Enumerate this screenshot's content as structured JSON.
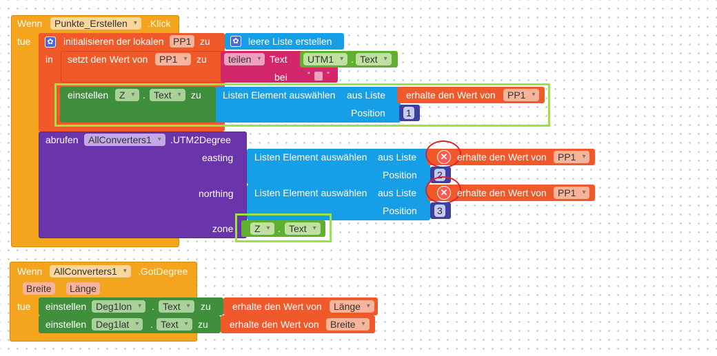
{
  "event1": {
    "when": "Wenn",
    "component": "Punkte_Erstellen",
    "event": ".Klick",
    "do": "tue",
    "init_label": "initialisieren der lokalen",
    "init_var": "PP1",
    "init_to": "zu",
    "empty_list": "leere Liste erstellen",
    "in_label": "in",
    "set_label": "setzt den Wert von",
    "set_var": "PP1",
    "set_to": "zu",
    "split_op": "teilen",
    "text_label": "Text",
    "utm_component": "UTM1",
    "dot": ".",
    "text_prop": "Text",
    "at_label": "bei",
    "string_quote_open": "“",
    "string_quote_close": "”",
    "assign_label": "einstellen",
    "z_component": "Z",
    "z_prop": "Text",
    "assign_to": "zu",
    "select_item": "Listen Element auswählen",
    "from_list": "aus Liste",
    "get_value": "erhalte den Wert von",
    "get_var": "PP1",
    "position_label": "Position",
    "position1": "1",
    "call_label": "abrufen",
    "call_component": "AllConverters1",
    "call_method": ".UTM2Degree",
    "easting": "easting",
    "northing": "northing",
    "zone": "zone",
    "position2": "2",
    "position3": "3",
    "zone_component": "Z",
    "zone_prop": "Text",
    "error_symbol": "✕"
  },
  "event2": {
    "when": "Wenn",
    "component": "AllConverters1",
    "event": ".GotDegree",
    "param1": "Breite",
    "param2": "Länge",
    "do": "tue",
    "assign_label": "einstellen",
    "lon_component": "Deg1lon",
    "lat_component": "Deg1lat",
    "dot": ".",
    "prop": "Text",
    "to": "zu",
    "get_value": "erhalte den Wert von",
    "lon_var": "Länge",
    "lat_var": "Breite"
  },
  "icons": {
    "mutator": "gear-icon",
    "error": "error-icon"
  },
  "colors": {
    "event": "#f5a41d",
    "variable": "#f0592a",
    "component_set": "#3f8f3d",
    "method_call": "#6a35aa",
    "list": "#169ee6",
    "text_op": "#d3266b",
    "component_get": "#5fb02f",
    "math": "#3f3f9f",
    "highlight": "#9ae343",
    "error": "#ff5a4f",
    "error_ring": "#e0222a"
  }
}
